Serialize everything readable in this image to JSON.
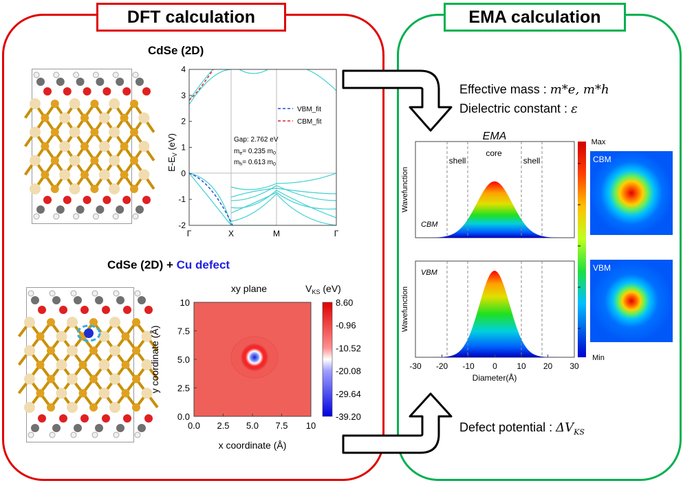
{
  "dft": {
    "title": "DFT calculation",
    "system1_label": "CdSe (2D)",
    "system2_label_main": "CdSe (2D) + ",
    "system2_label_defect": "Cu defect",
    "band": {
      "ylabel": "E-E",
      "ylabel_sub": "V",
      "ylabel_unit": " (eV)",
      "yticks": [
        "4",
        "3",
        "2",
        "1",
        "0",
        "-1",
        "-2"
      ],
      "xticks": [
        "Γ",
        "X",
        "M",
        "Γ"
      ],
      "legend": [
        {
          "label": "VBM_fit",
          "color": "#1f4fd1"
        },
        {
          "label": "CBM_fit",
          "color": "#e0202a"
        }
      ],
      "gap_text": "Gap: 2.762 eV",
      "me_text": "= 0.235 m",
      "mh_text": "= 0.613 m",
      "me_prefix": "m",
      "me_sub": "e",
      "mh_prefix": "m",
      "mh_sub": "h",
      "m0_sub": "0",
      "band_color": "#40d0d0"
    },
    "map": {
      "title": "xy plane",
      "cbar_title_main": "V",
      "cbar_title_sub": "KS",
      "cbar_title_unit": " (eV)",
      "cbar_ticks": [
        "8.60",
        "-0.96",
        "-10.52",
        "-20.08",
        "-29.64",
        "-39.20"
      ],
      "xticks": [
        "0.0",
        "2.5",
        "5.0",
        "7.5",
        "10"
      ],
      "yticks": [
        "10",
        "7.5",
        "5.0",
        "2.5",
        "0.0"
      ],
      "xlabel": "x coordinate  (Å)",
      "ylabel": "y coordinate  (Å)"
    }
  },
  "ema": {
    "title": "EMA calculation",
    "effective_mass_label": "Effective mass :",
    "effective_mass_symbol": "m*e, m*h",
    "dielectric_label": "Dielectric constant :",
    "dielectric_symbol": "ε",
    "defect_label": "Defect potential :",
    "defect_symbol": "ΔV",
    "defect_symbol_sub": "KS",
    "plot_title": "EMA",
    "region_labels": {
      "shell_left": "shell",
      "core": "core",
      "shell_right": "shell"
    },
    "panel1_tag": "CBM",
    "panel2_tag": "VBM",
    "ylabel": "Wavefunction",
    "xlabel": "Diameter(Å)",
    "xticks": [
      "-30",
      "-20",
      "-10",
      "0",
      "10",
      "20",
      "30"
    ],
    "colorbar_max": "Max",
    "colorbar_min": "Min",
    "map_cbm_label": "CBM",
    "map_vbm_label": "VBM"
  },
  "colors": {
    "dft_border": "#e00000",
    "ema_border": "#00b050",
    "cu_defect_text": "#2020e0"
  }
}
